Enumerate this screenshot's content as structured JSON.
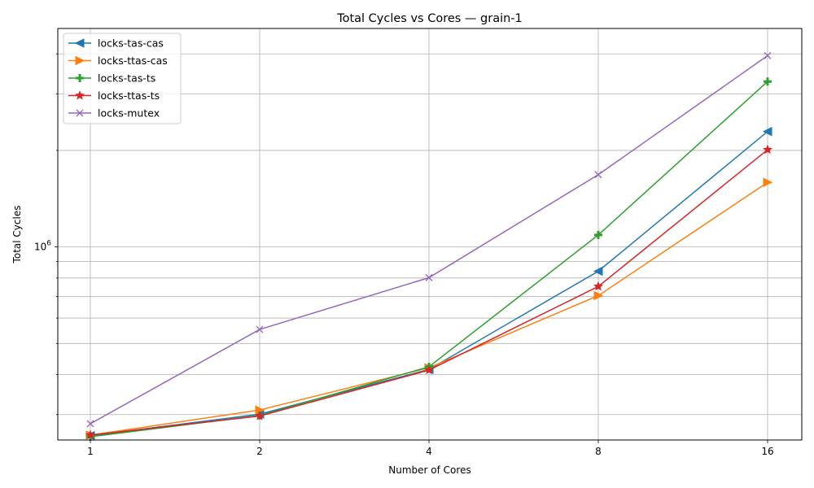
{
  "chart_data": {
    "type": "line",
    "title": "Total Cycles vs Cores — grain-1",
    "xlabel": "Number of Cores",
    "ylabel": "Total Cycles",
    "x_scale": "log2",
    "y_scale": "log",
    "categories": [
      "1",
      "2",
      "4",
      "8",
      "16"
    ],
    "x": [
      1,
      2,
      4,
      8,
      16
    ],
    "y_tick_labels": [
      {
        "value": 1000000,
        "base": "10",
        "exp": "6"
      }
    ],
    "ylim": [
      250000,
      4800000
    ],
    "grid": true,
    "legend_position": "top-left",
    "series": [
      {
        "name": "locks-tas-cas",
        "color": "#1f77b4",
        "marker": "triangle-left",
        "values": [
          258000,
          301000,
          415000,
          840000,
          2290000
        ]
      },
      {
        "name": "locks-ttas-cas",
        "color": "#ff7f0e",
        "marker": "triangle-right",
        "values": [
          259000,
          310000,
          420000,
          705000,
          1590000
        ]
      },
      {
        "name": "locks-tas-ts",
        "color": "#2ca02c",
        "marker": "plus",
        "values": [
          256000,
          298000,
          423000,
          1090000,
          3280000
        ]
      },
      {
        "name": "locks-ttas-ts",
        "color": "#d62728",
        "marker": "star",
        "values": [
          259000,
          297000,
          413000,
          753000,
          2010000
        ]
      },
      {
        "name": "locks-mutex",
        "color": "#9467bd",
        "marker": "x",
        "values": [
          281000,
          553000,
          802000,
          1680000,
          3950000
        ]
      }
    ]
  }
}
